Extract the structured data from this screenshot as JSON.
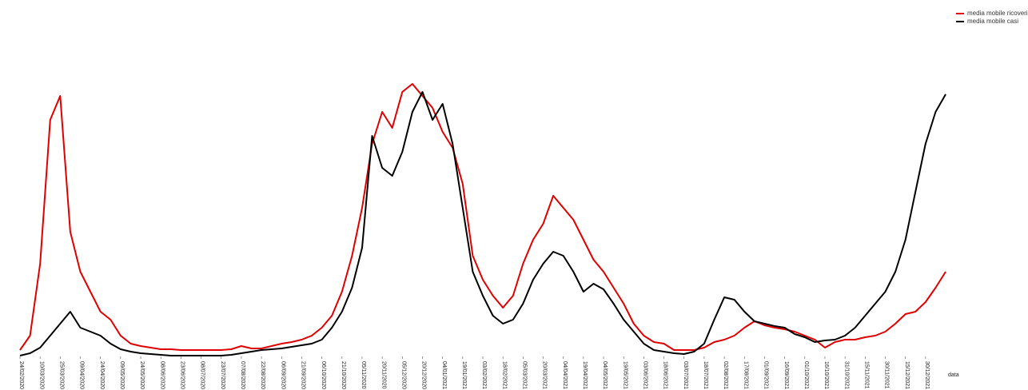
{
  "chart_data": {
    "type": "line",
    "x_label": "data",
    "categories": [
      "24/02/2020",
      null,
      "10/03/2020",
      null,
      "25/03/2020",
      null,
      "09/04/2020",
      null,
      "24/04/2020",
      null,
      "09/05/2020",
      null,
      "24/05/2020",
      null,
      "08/06/2020",
      null,
      "23/06/2020",
      null,
      "08/07/2020",
      null,
      "23/07/2020",
      null,
      "07/08/2020",
      null,
      "22/08/2020",
      null,
      "06/09/2020",
      null,
      "21/09/2020",
      null,
      "06/10/2020",
      null,
      "21/10/2020",
      null,
      "05/11/2020",
      null,
      "20/11/2020",
      null,
      "05/12/2020",
      null,
      "20/12/2020",
      null,
      "04/01/2021",
      null,
      "19/01/2021",
      null,
      "03/02/2021",
      null,
      "18/02/2021",
      null,
      "05/03/2021",
      null,
      "20/03/2021",
      null,
      "04/04/2021",
      null,
      "19/04/2021",
      null,
      "04/05/2021",
      null,
      "19/05/2021",
      null,
      "03/06/2021",
      null,
      "18/06/2021",
      null,
      "03/07/2021",
      null,
      "18/07/2021",
      null,
      "02/08/2021",
      null,
      "17/08/2021",
      null,
      "01/09/2021",
      null,
      "16/09/2021",
      null,
      "01/10/2021",
      null,
      "16/10/2021",
      null,
      "31/10/2021",
      null,
      "15/11/2021",
      null,
      "30/11/2021",
      null,
      "15/12/2021",
      null,
      "30/12/2021",
      null,
      null
    ],
    "series": [
      {
        "name": "media mobile ricoveri",
        "color": "#e00000",
        "values": [
          8,
          26,
          116,
          296,
          326,
          156,
          106,
          81,
          56,
          46,
          26,
          16,
          13,
          11,
          9,
          9,
          8,
          8,
          8,
          8,
          8,
          9,
          13,
          10,
          10,
          13,
          16,
          18,
          21,
          26,
          36,
          51,
          81,
          126,
          186,
          266,
          306,
          286,
          331,
          341,
          326,
          311,
          281,
          261,
          216,
          126,
          96,
          76,
          61,
          76,
          116,
          146,
          166,
          201,
          186,
          171,
          146,
          121,
          106,
          86,
          66,
          41,
          26,
          18,
          16,
          8,
          8,
          8,
          11,
          18,
          21,
          26,
          36,
          44,
          39,
          36,
          34,
          31,
          26,
          21,
          11,
          18,
          21,
          21,
          24,
          26,
          31,
          41,
          53,
          56,
          68,
          86,
          106
        ]
      },
      {
        "name": "media mobile casi",
        "color": "#000000",
        "values": [
          1,
          4,
          11,
          26,
          41,
          56,
          36,
          31,
          26,
          16,
          9,
          6,
          4,
          3,
          2,
          1,
          1,
          1,
          1,
          1,
          1,
          2,
          4,
          6,
          8,
          9,
          10,
          12,
          14,
          16,
          21,
          36,
          56,
          86,
          136,
          276,
          236,
          226,
          256,
          306,
          331,
          296,
          316,
          266,
          186,
          106,
          76,
          51,
          41,
          46,
          66,
          96,
          116,
          131,
          126,
          106,
          81,
          91,
          84,
          66,
          46,
          31,
          16,
          8,
          6,
          4,
          3,
          6,
          16,
          46,
          74,
          71,
          56,
          44,
          41,
          38,
          36,
          28,
          24,
          18,
          20,
          21,
          26,
          36,
          51,
          66,
          81,
          106,
          146,
          206,
          266,
          306,
          328
        ]
      }
    ],
    "ylim": [
      0,
      370
    ],
    "legend": "top-right"
  }
}
